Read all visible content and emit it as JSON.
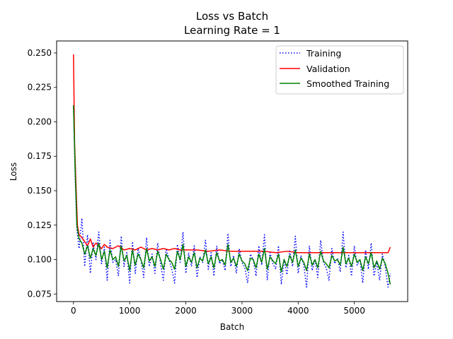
{
  "chart_data": {
    "type": "line",
    "title": "Loss vs Batch",
    "subtitle": "Learning Rate = 1",
    "xlabel": "Batch",
    "ylabel": "Loss",
    "xlim": [
      -300,
      5950
    ],
    "ylim": [
      0.0695,
      0.2587
    ],
    "xticks": [
      0,
      1000,
      2000,
      3000,
      4000,
      5000
    ],
    "xtick_labels": [
      "0",
      "1000",
      "2000",
      "3000",
      "4000",
      "5000"
    ],
    "yticks": [
      0.075,
      0.1,
      0.125,
      0.15,
      0.175,
      0.2,
      0.225,
      0.25
    ],
    "ytick_labels": [
      "0.075",
      "0.100",
      "0.125",
      "0.150",
      "0.175",
      "0.200",
      "0.225",
      "0.250"
    ],
    "grid": false,
    "legend_position": "top-right",
    "series": [
      {
        "name": "Training",
        "color": "#0000ff",
        "style": "dotted",
        "x": [
          0,
          30,
          60,
          100,
          150,
          200,
          250,
          300,
          350,
          400,
          450,
          500,
          550,
          600,
          650,
          700,
          750,
          800,
          850,
          900,
          950,
          1000,
          1050,
          1100,
          1150,
          1200,
          1250,
          1300,
          1350,
          1400,
          1450,
          1500,
          1550,
          1600,
          1650,
          1700,
          1750,
          1800,
          1850,
          1900,
          1950,
          2000,
          2050,
          2100,
          2150,
          2200,
          2250,
          2300,
          2350,
          2400,
          2450,
          2500,
          2550,
          2600,
          2650,
          2700,
          2750,
          2800,
          2850,
          2900,
          2950,
          3000,
          3050,
          3100,
          3150,
          3200,
          3250,
          3300,
          3350,
          3400,
          3450,
          3500,
          3550,
          3600,
          3650,
          3700,
          3750,
          3800,
          3850,
          3900,
          3950,
          4000,
          4050,
          4100,
          4150,
          4200,
          4250,
          4300,
          4350,
          4400,
          4450,
          4500,
          4550,
          4600,
          4650,
          4700,
          4750,
          4800,
          4850,
          4900,
          4950,
          5000,
          5050,
          5100,
          5150,
          5200,
          5250,
          5300,
          5350,
          5400,
          5450,
          5500,
          5550,
          5600,
          5640
        ],
        "y": [
          0.212,
          0.16,
          0.122,
          0.108,
          0.13,
          0.095,
          0.118,
          0.09,
          0.112,
          0.1,
          0.12,
          0.097,
          0.109,
          0.085,
          0.114,
          0.098,
          0.1,
          0.088,
          0.117,
          0.095,
          0.105,
          0.083,
          0.113,
          0.09,
          0.108,
          0.1,
          0.087,
          0.116,
          0.095,
          0.104,
          0.09,
          0.112,
          0.097,
          0.085,
          0.108,
          0.1,
          0.093,
          0.083,
          0.111,
          0.098,
          0.12,
          0.09,
          0.105,
          0.095,
          0.11,
          0.087,
          0.102,
          0.098,
          0.114,
          0.093,
          0.105,
          0.088,
          0.11,
          0.097,
          0.1,
          0.092,
          0.119,
          0.095,
          0.103,
          0.09,
          0.108,
          0.098,
          0.094,
          0.083,
          0.104,
          0.1,
          0.088,
          0.11,
          0.096,
          0.118,
          0.085,
          0.105,
          0.097,
          0.093,
          0.11,
          0.082,
          0.1,
          0.089,
          0.107,
          0.095,
          0.117,
          0.09,
          0.103,
          0.096,
          0.08,
          0.11,
          0.092,
          0.1,
          0.087,
          0.114,
          0.098,
          0.094,
          0.085,
          0.108,
          0.097,
          0.101,
          0.091,
          0.12,
          0.094,
          0.103,
          0.088,
          0.11,
          0.096,
          0.1,
          0.083,
          0.107,
          0.093,
          0.112,
          0.088,
          0.098,
          0.085,
          0.104,
          0.095,
          0.08,
          0.09
        ],
        "label_pos": [
          0,
          0
        ]
      },
      {
        "name": "Validation",
        "color": "#ff0000",
        "style": "solid",
        "x": [
          0,
          20,
          40,
          70,
          100,
          150,
          200,
          250,
          300,
          350,
          400,
          450,
          500,
          550,
          600,
          700,
          800,
          900,
          1000,
          1100,
          1200,
          1300,
          1400,
          1500,
          1600,
          1700,
          1800,
          1900,
          2000,
          2200,
          2400,
          2600,
          2800,
          3000,
          3200,
          3400,
          3600,
          3800,
          4000,
          4200,
          4400,
          4600,
          4800,
          5000,
          5200,
          5400,
          5600,
          5640
        ],
        "y": [
          0.249,
          0.185,
          0.16,
          0.125,
          0.118,
          0.116,
          0.113,
          0.11,
          0.115,
          0.109,
          0.112,
          0.11,
          0.108,
          0.111,
          0.109,
          0.108,
          0.11,
          0.107,
          0.108,
          0.107,
          0.109,
          0.107,
          0.108,
          0.107,
          0.108,
          0.107,
          0.108,
          0.107,
          0.107,
          0.107,
          0.106,
          0.107,
          0.106,
          0.106,
          0.106,
          0.106,
          0.105,
          0.106,
          0.105,
          0.105,
          0.105,
          0.105,
          0.105,
          0.105,
          0.105,
          0.105,
          0.105,
          0.109
        ]
      },
      {
        "name": "Smoothed Training",
        "color": "#008000",
        "style": "solid",
        "x": [
          0,
          30,
          60,
          100,
          150,
          200,
          250,
          300,
          350,
          400,
          450,
          500,
          550,
          600,
          650,
          700,
          750,
          800,
          850,
          900,
          950,
          1000,
          1050,
          1100,
          1150,
          1200,
          1250,
          1300,
          1350,
          1400,
          1450,
          1500,
          1550,
          1600,
          1650,
          1700,
          1750,
          1800,
          1850,
          1900,
          1950,
          2000,
          2050,
          2100,
          2150,
          2200,
          2250,
          2300,
          2350,
          2400,
          2450,
          2500,
          2550,
          2600,
          2650,
          2700,
          2750,
          2800,
          2850,
          2900,
          2950,
          3000,
          3050,
          3100,
          3150,
          3200,
          3250,
          3300,
          3350,
          3400,
          3450,
          3500,
          3550,
          3600,
          3650,
          3700,
          3750,
          3800,
          3850,
          3900,
          3950,
          4000,
          4050,
          4100,
          4150,
          4200,
          4250,
          4300,
          4350,
          4400,
          4450,
          4500,
          4550,
          4600,
          4650,
          4700,
          4750,
          4800,
          4850,
          4900,
          4950,
          5000,
          5050,
          5100,
          5150,
          5200,
          5250,
          5300,
          5350,
          5400,
          5450,
          5500,
          5550,
          5600,
          5640
        ],
        "y": [
          0.212,
          0.165,
          0.125,
          0.115,
          0.112,
          0.104,
          0.11,
          0.101,
          0.108,
          0.103,
          0.112,
          0.1,
          0.106,
          0.094,
          0.107,
          0.1,
          0.102,
          0.095,
          0.11,
          0.099,
          0.103,
          0.092,
          0.107,
          0.096,
          0.104,
          0.1,
          0.094,
          0.108,
          0.099,
          0.102,
          0.095,
          0.106,
          0.1,
          0.093,
          0.104,
          0.1,
          0.098,
          0.093,
          0.106,
          0.1,
          0.111,
          0.095,
          0.102,
          0.098,
          0.105,
          0.094,
          0.101,
          0.099,
          0.107,
          0.097,
          0.102,
          0.094,
          0.105,
          0.099,
          0.1,
          0.096,
          0.111,
          0.098,
          0.101,
          0.095,
          0.104,
          0.099,
          0.097,
          0.092,
          0.101,
          0.1,
          0.094,
          0.104,
          0.098,
          0.108,
          0.093,
          0.102,
          0.099,
          0.097,
          0.104,
          0.091,
          0.1,
          0.095,
          0.103,
          0.098,
          0.107,
          0.095,
          0.101,
          0.098,
          0.092,
          0.104,
          0.096,
          0.1,
          0.094,
          0.106,
          0.099,
          0.097,
          0.094,
          0.103,
          0.099,
          0.1,
          0.096,
          0.109,
          0.097,
          0.101,
          0.095,
          0.104,
          0.098,
          0.1,
          0.092,
          0.102,
          0.097,
          0.105,
          0.094,
          0.099,
          0.093,
          0.101,
          0.097,
          0.09,
          0.082
        ]
      }
    ]
  }
}
